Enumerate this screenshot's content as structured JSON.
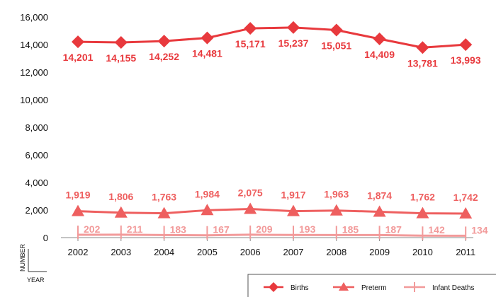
{
  "chart_data": {
    "type": "line",
    "title": "",
    "xlabel": "YEAR",
    "ylabel": "NUMBER",
    "x": [
      "2002",
      "2003",
      "2004",
      "2005",
      "2006",
      "2007",
      "2008",
      "2009",
      "2010",
      "2011"
    ],
    "ylim": [
      0,
      16000
    ],
    "yticks": [
      "0",
      "2,000",
      "4,000",
      "6,000",
      "8,000",
      "10,000",
      "12,000",
      "14,000",
      "16,000"
    ],
    "grid": false,
    "legend_position": "bottom-right",
    "series": [
      {
        "name": "Births",
        "marker": "diamond",
        "color": "#e8393d",
        "values": [
          14201,
          14155,
          14252,
          14481,
          15171,
          15237,
          15051,
          14409,
          13781,
          13993
        ],
        "labels": [
          "14,201",
          "14,155",
          "14,252",
          "14,481",
          "15,171",
          "15,237",
          "15,051",
          "14,409",
          "13,781",
          "13,993"
        ]
      },
      {
        "name": "Preterm",
        "marker": "triangle",
        "color": "#ee5f5f",
        "values": [
          1919,
          1806,
          1763,
          1984,
          2075,
          1917,
          1963,
          1874,
          1762,
          1742
        ],
        "labels": [
          "1,919",
          "1,806",
          "1,763",
          "1,984",
          "2,075",
          "1,917",
          "1,963",
          "1,874",
          "1,762",
          "1,742"
        ]
      },
      {
        "name": "Infant Deaths",
        "marker": "plus",
        "color": "#f29a9a",
        "values": [
          202,
          211,
          183,
          167,
          209,
          193,
          185,
          187,
          142,
          134
        ],
        "labels": [
          "202",
          "211",
          "183",
          "167",
          "209",
          "193",
          "185",
          "187",
          "142",
          "134"
        ]
      }
    ]
  }
}
